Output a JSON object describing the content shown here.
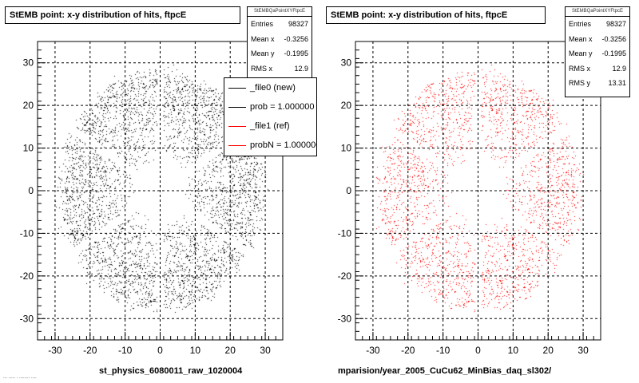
{
  "colors": {
    "ref_hist": "#000000",
    "new_hist": "#ff0000"
  },
  "left_pad": {
    "title": "StEMB point: x-y distribution of hits, ftpcE",
    "stats": {
      "name": "StEMBQaPointXYFtpcE",
      "rows": [
        {
          "label": "Entries",
          "value": "98327"
        },
        {
          "label": "Mean x",
          "value": "-0.3256"
        },
        {
          "label": "Mean y",
          "value": "-0.1995"
        },
        {
          "label": "RMS x",
          "value": "12.9"
        }
      ]
    },
    "legend": [
      {
        "text": "_file0 (new)",
        "color": "#000000"
      },
      {
        "text": "prob = 1.000000",
        "color": "#000000"
      },
      {
        "text": "_file1 (ref)",
        "color": "#ff0000"
      },
      {
        "text": "probN = 1.000000",
        "color": "#ff0000"
      }
    ],
    "footer": "st_physics_6080011_raw_1020004"
  },
  "right_pad": {
    "title": "StEMB point: x-y distribution of hits, ftpcE",
    "stats": {
      "name": "StEMBQaPointXYFtpcE",
      "rows": [
        {
          "label": "Entries",
          "value": "98327"
        },
        {
          "label": "Mean x",
          "value": "-0.3256"
        },
        {
          "label": "Mean y",
          "value": "-0.1995"
        },
        {
          "label": "RMS x",
          "value": "12.9"
        },
        {
          "label": "RMS y",
          "value": "13.31"
        }
      ]
    },
    "footer": "mparision/year_2005_CuCu62_MinBias_daq_sl302/"
  },
  "bottom_left_text": "... ..... . ........ ....",
  "chart_data": [
    {
      "type": "scatter",
      "title": "StEMB point: x-y distribution of hits, ftpcE",
      "xlim": [
        -35,
        35
      ],
      "ylim": [
        -35,
        35
      ],
      "xticks": [
        -30,
        -20,
        -10,
        0,
        10,
        20,
        30
      ],
      "yticks": [
        -30,
        -20,
        -10,
        0,
        10,
        20,
        30
      ],
      "grid": true,
      "color": "#000000",
      "distribution": {
        "inner_radius": 7,
        "outer_radius_x": 29,
        "outer_radius_y": 28,
        "sector_gap_angles_deg": [
          90,
          30,
          -30,
          -90,
          -150,
          150
        ]
      },
      "entries": 98327,
      "mean_x": -0.3256,
      "mean_y": -0.1995,
      "rms_x": 12.9
    },
    {
      "type": "scatter",
      "title": "StEMB point: x-y distribution of hits, ftpcE",
      "xlim": [
        -35,
        35
      ],
      "ylim": [
        -35,
        35
      ],
      "xticks": [
        -30,
        -20,
        -10,
        0,
        10,
        20,
        30
      ],
      "yticks": [
        -30,
        -20,
        -10,
        0,
        10,
        20,
        30
      ],
      "grid": true,
      "color": "#ff0000",
      "distribution": {
        "inner_radius": 7,
        "outer_radius_x": 29,
        "outer_radius_y": 28,
        "sector_gap_angles_deg": [
          90,
          30,
          -30,
          -90,
          -150,
          150
        ]
      },
      "entries": 98327,
      "mean_x": -0.3256,
      "mean_y": -0.1995,
      "rms_x": 12.9,
      "rms_y": 13.31
    }
  ]
}
